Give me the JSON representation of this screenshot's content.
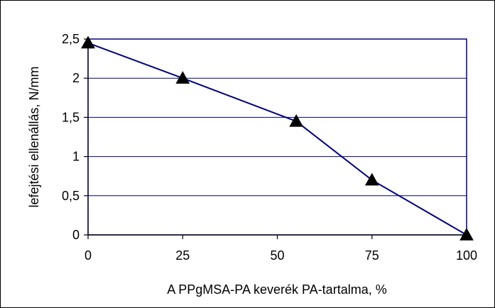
{
  "chart_data": {
    "type": "line",
    "title": "",
    "xlabel": "A PPgMSA-PA keverék PA-tartalma, %",
    "ylabel": "lefejtési ellenállás, N/mm",
    "xlim": [
      0,
      100
    ],
    "ylim": [
      0,
      2.5
    ],
    "xticks": [
      0,
      25,
      50,
      75,
      100
    ],
    "xtick_labels": [
      "0",
      "25",
      "50",
      "75",
      "100"
    ],
    "yticks": [
      0,
      0.5,
      1,
      1.5,
      2,
      2.5
    ],
    "ytick_labels": [
      "0",
      "0,5",
      "1",
      "1,5",
      "2",
      "2,5"
    ],
    "grid": "horizontal",
    "legend": "none",
    "series": [
      {
        "marker": "triangle",
        "color": "#000080",
        "marker_color": "#000000",
        "x": [
          0,
          25,
          55,
          75,
          100
        ],
        "y": [
          2.45,
          2.0,
          1.45,
          0.7,
          0.0
        ]
      }
    ]
  }
}
